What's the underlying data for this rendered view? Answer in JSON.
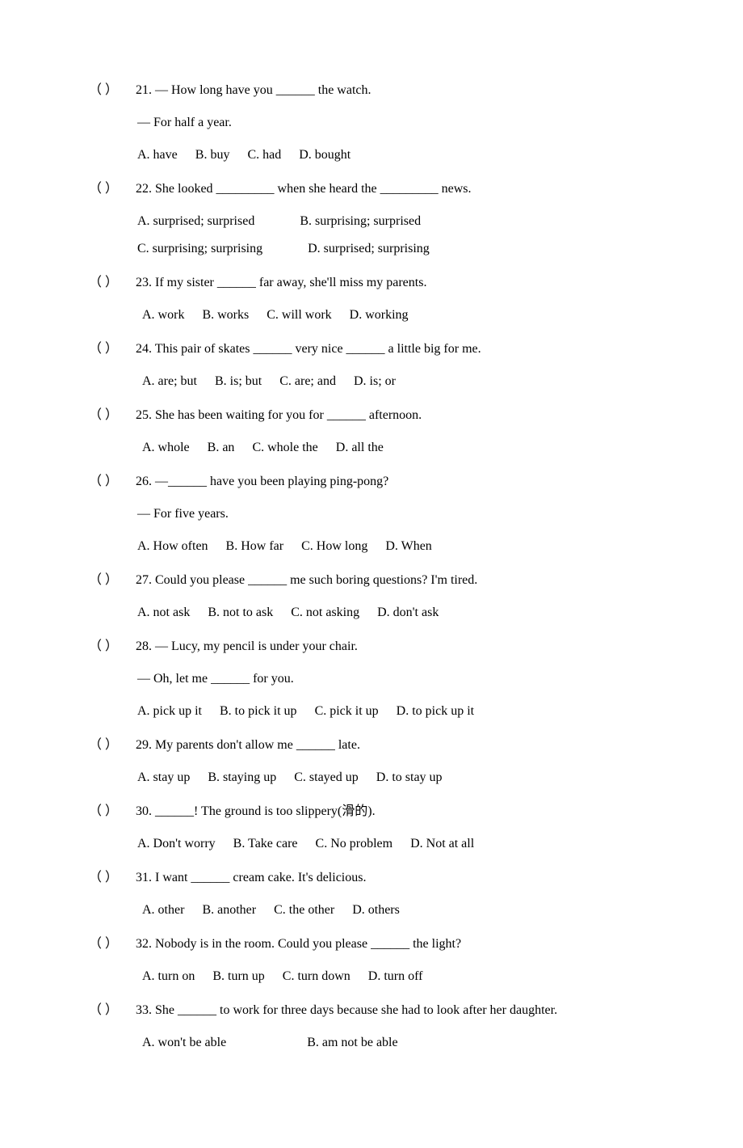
{
  "questions": [
    {
      "num": "21",
      "lines": [
        "— How long have you ______ the watch.",
        "— For half a year."
      ],
      "options": [
        "A. have",
        "B. buy",
        "C. had",
        "D. bought"
      ],
      "opt_layout": "single",
      "indent_style": "options"
    },
    {
      "num": "22",
      "lines": [
        "She looked _________ when she heard the _________ news."
      ],
      "options": [
        "A. surprised; surprised",
        "B. surprising; surprised",
        "C. surprising; surprising",
        "D. surprised; surprising"
      ],
      "opt_layout": "two-col",
      "indent_style": "options"
    },
    {
      "num": "23",
      "lines": [
        "If my sister ______ far away, she'll miss my parents."
      ],
      "options": [
        "A. work",
        "B. works",
        "C. will work",
        "D. working"
      ],
      "opt_layout": "single",
      "indent_style": "options-narrow"
    },
    {
      "num": "24",
      "lines": [
        "This pair of skates ______ very nice ______ a little big for me."
      ],
      "options": [
        "A. are; but",
        "B. is; but",
        "C. are; and",
        "D. is; or"
      ],
      "opt_layout": "single",
      "indent_style": "options-narrow"
    },
    {
      "num": "25",
      "lines": [
        "She has been waiting for you for ______ afternoon."
      ],
      "options": [
        "A. whole",
        "B. an",
        "C. whole the",
        "D. all the"
      ],
      "opt_layout": "single",
      "indent_style": "options-narrow"
    },
    {
      "num": "26",
      "lines": [
        "—______ have you been playing ping-pong?",
        "— For five years."
      ],
      "options": [
        "A. How often",
        "B. How far",
        "C. How long",
        "D. When"
      ],
      "opt_layout": "single",
      "indent_style": "options"
    },
    {
      "num": "27",
      "lines": [
        "Could you please ______ me such boring questions? I'm tired."
      ],
      "options": [
        "A. not ask",
        "B. not to ask",
        "C. not asking",
        "D. don't ask"
      ],
      "opt_layout": "single",
      "indent_style": "options"
    },
    {
      "num": "28",
      "lines": [
        "— Lucy, my pencil is under your chair.",
        "— Oh, let me ______ for you."
      ],
      "options": [
        "A. pick up it",
        "B. to pick it up",
        "C. pick it up",
        "D. to pick up it"
      ],
      "opt_layout": "single",
      "indent_style": "options"
    },
    {
      "num": "29",
      "lines": [
        "My parents don't allow me ______ late."
      ],
      "options": [
        "A. stay up",
        "B. staying up",
        "C. stayed up",
        "D. to stay up"
      ],
      "opt_layout": "single",
      "indent_style": "options"
    },
    {
      "num": "30",
      "lines": [
        "______! The ground is too slippery(滑的)."
      ],
      "options": [
        "A. Don't worry",
        "B. Take care",
        "C. No problem",
        "D. Not at all"
      ],
      "opt_layout": "single",
      "indent_style": "options"
    },
    {
      "num": "31",
      "lines": [
        "I want ______ cream cake. It's delicious."
      ],
      "options": [
        "A. other",
        "B. another",
        "C. the other",
        "D. others"
      ],
      "opt_layout": "single",
      "indent_style": "options-narrow"
    },
    {
      "num": "32",
      "lines": [
        "Nobody is in the room. Could you please ______ the light?"
      ],
      "options": [
        "A. turn on",
        "B. turn up",
        "C. turn down",
        "D. turn off"
      ],
      "opt_layout": "single",
      "indent_style": "options-narrow"
    },
    {
      "num": "33",
      "lines": [
        "She ______ to work for three days because she had to look after her daughter."
      ],
      "options": [
        "A. won't be able",
        "B. am not be able"
      ],
      "opt_layout": "two-of-four",
      "indent_style": "options-narrow"
    }
  ]
}
